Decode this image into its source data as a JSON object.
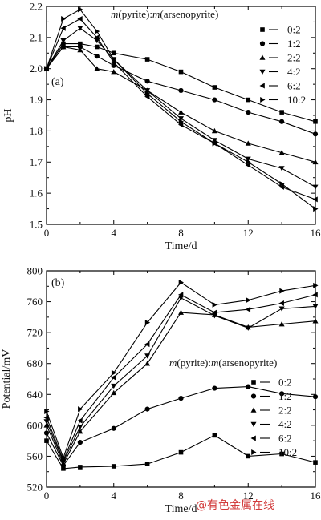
{
  "watermark": "@有色金属在线",
  "chart_data": [
    {
      "type": "line",
      "panel_label": "(a)",
      "xlabel": "Time/d",
      "ylabel": "pH",
      "xlim": [
        0,
        16
      ],
      "ylim": [
        1.5,
        2.2
      ],
      "xticks": [
        0,
        4,
        8,
        12,
        16
      ],
      "yticks": [
        1.5,
        1.6,
        1.7,
        1.8,
        1.9,
        2.0,
        2.1,
        2.2
      ],
      "x": [
        0,
        1,
        2,
        3,
        4,
        6,
        8,
        10,
        12,
        14,
        16
      ],
      "legend_title_parts": [
        "m",
        "(pyrite):",
        "m",
        "(arsenopyrite)"
      ],
      "legend_position": "top-right",
      "series": [
        {
          "name": "0:2",
          "marker": "square",
          "values": [
            2.0,
            2.08,
            2.08,
            2.07,
            2.05,
            2.03,
            1.99,
            1.94,
            1.9,
            1.86,
            1.83
          ]
        },
        {
          "name": "1:2",
          "marker": "circle",
          "values": [
            2.0,
            2.07,
            2.07,
            2.04,
            2.01,
            1.96,
            1.93,
            1.9,
            1.86,
            1.83,
            1.79
          ]
        },
        {
          "name": "2:2",
          "marker": "triangle-up",
          "values": [
            2.0,
            2.07,
            2.06,
            2.0,
            1.99,
            1.93,
            1.86,
            1.8,
            1.76,
            1.73,
            1.7
          ]
        },
        {
          "name": "4:2",
          "marker": "triangle-down",
          "values": [
            2.0,
            2.09,
            2.13,
            2.09,
            2.03,
            1.93,
            1.84,
            1.77,
            1.71,
            1.68,
            1.62
          ]
        },
        {
          "name": "6:2",
          "marker": "triangle-left",
          "values": [
            2.0,
            2.13,
            2.16,
            2.1,
            2.02,
            1.91,
            1.82,
            1.76,
            1.69,
            1.62,
            1.58
          ]
        },
        {
          "name": "10:2",
          "marker": "triangle-right",
          "values": [
            2.0,
            2.16,
            2.19,
            2.12,
            2.03,
            1.92,
            1.83,
            1.76,
            1.7,
            1.63,
            1.55
          ]
        }
      ]
    },
    {
      "type": "line",
      "panel_label": "(b)",
      "xlabel": "Time/d",
      "ylabel": "Potential/mV",
      "xlim": [
        0,
        16
      ],
      "ylim": [
        520,
        800
      ],
      "xticks": [
        0,
        4,
        8,
        12,
        16
      ],
      "yticks": [
        520,
        560,
        600,
        640,
        680,
        720,
        760,
        800
      ],
      "x": [
        0,
        1,
        2,
        4,
        6,
        8,
        10,
        12,
        14,
        16
      ],
      "legend_title_parts": [
        "m",
        "(pyrite):",
        "m",
        "(arsenopyrite)"
      ],
      "legend_position": "center-right",
      "series": [
        {
          "name": "0:2",
          "marker": "square",
          "values": [
            580,
            544,
            546,
            547,
            550,
            565,
            587,
            560,
            563,
            552
          ]
        },
        {
          "name": "1:2",
          "marker": "circle",
          "values": [
            590,
            548,
            578,
            596,
            621,
            635,
            648,
            650,
            641,
            637
          ]
        },
        {
          "name": "2:2",
          "marker": "triangle-up",
          "values": [
            600,
            550,
            592,
            642,
            680,
            746,
            743,
            727,
            731,
            735
          ]
        },
        {
          "name": "4:2",
          "marker": "triangle-down",
          "values": [
            605,
            553,
            598,
            651,
            690,
            765,
            742,
            726,
            751,
            754
          ]
        },
        {
          "name": "6:2",
          "marker": "triangle-left",
          "values": [
            610,
            555,
            606,
            662,
            705,
            769,
            746,
            750,
            758,
            769
          ]
        },
        {
          "name": "10:2",
          "marker": "triangle-right",
          "values": [
            618,
            558,
            621,
            668,
            733,
            785,
            756,
            762,
            774,
            781
          ]
        }
      ]
    }
  ]
}
